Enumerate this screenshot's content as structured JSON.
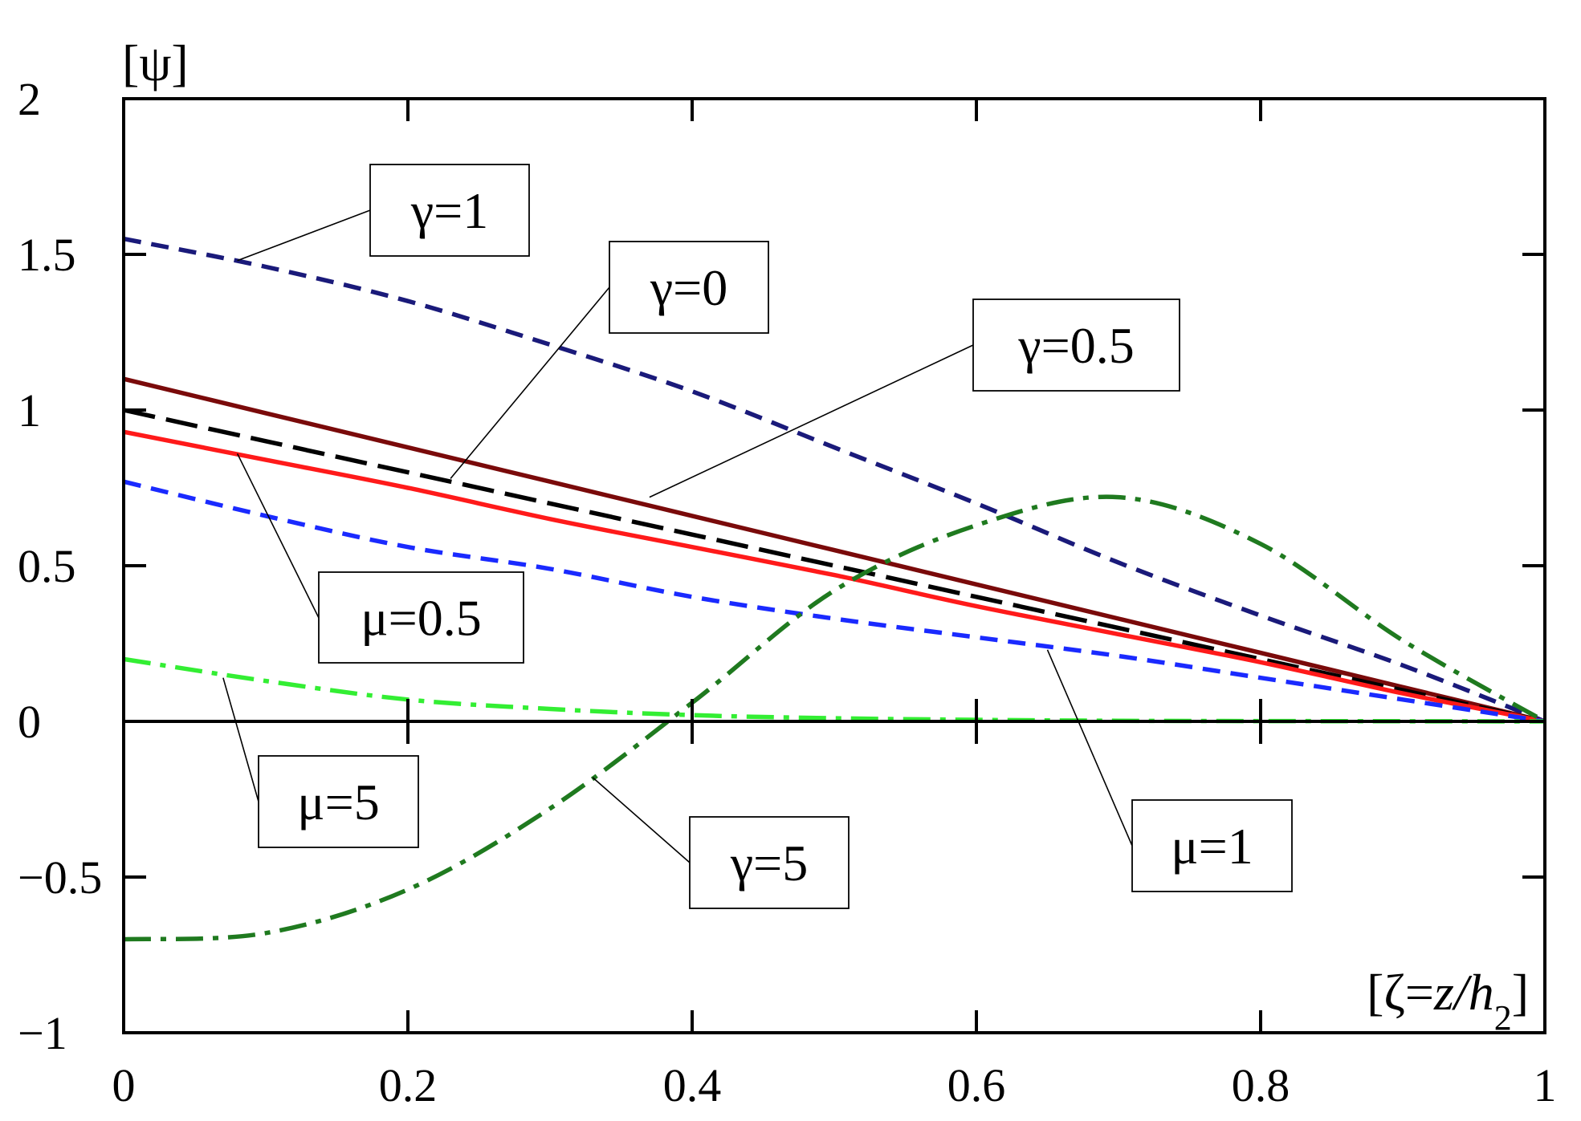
{
  "chart_data": {
    "type": "line",
    "ylabel": "[ψ]",
    "xlabel": {
      "prefix": "[ζ=",
      "var": "z/h",
      "sub": "2",
      "suffix": "]"
    },
    "xlim": [
      0,
      1
    ],
    "ylim": [
      -1,
      2
    ],
    "x_ticks": [
      0,
      0.2,
      0.4,
      0.6,
      0.8,
      1
    ],
    "x_tick_labels": [
      "0",
      "0.2",
      "0.4",
      "0.6",
      "0.8",
      "1"
    ],
    "y_ticks": [
      -1,
      -0.5,
      0,
      0.5,
      1,
      1.5,
      2
    ],
    "y_tick_labels": [
      "−1",
      "−0.5",
      "0",
      "0.5",
      "1",
      "1.5",
      "2"
    ],
    "grid": false,
    "zero_line": true,
    "x": [
      0,
      0.1,
      0.2,
      0.3,
      0.4,
      0.5,
      0.6,
      0.7,
      0.8,
      0.9,
      1.0
    ],
    "series": [
      {
        "name": "γ=1",
        "color": "#1a1a7a",
        "dash": "short-dash",
        "values": [
          1.55,
          1.46,
          1.35,
          1.21,
          1.06,
          0.88,
          0.7,
          0.51,
          0.34,
          0.18,
          0.0
        ]
      },
      {
        "name": "γ=0.5",
        "color": "#7a0a0a",
        "dash": "solid",
        "values": [
          1.1,
          0.99,
          0.88,
          0.77,
          0.66,
          0.55,
          0.44,
          0.33,
          0.22,
          0.11,
          0.0
        ]
      },
      {
        "name": "γ=0",
        "color": "#000000",
        "dash": "long-dash",
        "values": [
          1.0,
          0.9,
          0.8,
          0.7,
          0.6,
          0.5,
          0.4,
          0.3,
          0.2,
          0.1,
          0.0
        ]
      },
      {
        "name": "μ=0.5",
        "color": "#ff1a1a",
        "dash": "solid",
        "values": [
          0.93,
          0.84,
          0.75,
          0.65,
          0.56,
          0.47,
          0.37,
          0.28,
          0.19,
          0.09,
          0.0
        ]
      },
      {
        "name": "μ=1",
        "color": "#1a2aff",
        "dash": "short-dash",
        "values": [
          0.77,
          0.66,
          0.56,
          0.49,
          0.4,
          0.33,
          0.27,
          0.21,
          0.14,
          0.07,
          0.0
        ]
      },
      {
        "name": "γ=5",
        "color": "#1f7a1f",
        "dash": "dash-dot",
        "values": [
          -0.7,
          -0.68,
          -0.54,
          -0.28,
          0.06,
          0.42,
          0.63,
          0.72,
          0.57,
          0.26,
          0.0
        ]
      },
      {
        "name": "μ=5",
        "color": "#33ee33",
        "dash": "dash-dot",
        "values": [
          0.2,
          0.13,
          0.07,
          0.04,
          0.02,
          0.01,
          0.005,
          0.002,
          0.001,
          0.0005,
          0.0
        ]
      }
    ],
    "annotations": [
      {
        "label": "γ=1",
        "target": [
          0.08,
          1.48
        ]
      },
      {
        "label": "γ=0",
        "target": [
          0.23,
          0.78
        ]
      },
      {
        "label": "γ=0.5",
        "target": [
          0.37,
          0.72
        ]
      },
      {
        "label": "μ=0.5",
        "target": [
          0.08,
          0.86
        ]
      },
      {
        "label": "μ=5",
        "target": [
          0.07,
          0.14
        ]
      },
      {
        "label": "γ=5",
        "target": [
          0.33,
          -0.18
        ]
      },
      {
        "label": "μ=1",
        "target": [
          0.65,
          0.23
        ]
      }
    ]
  }
}
